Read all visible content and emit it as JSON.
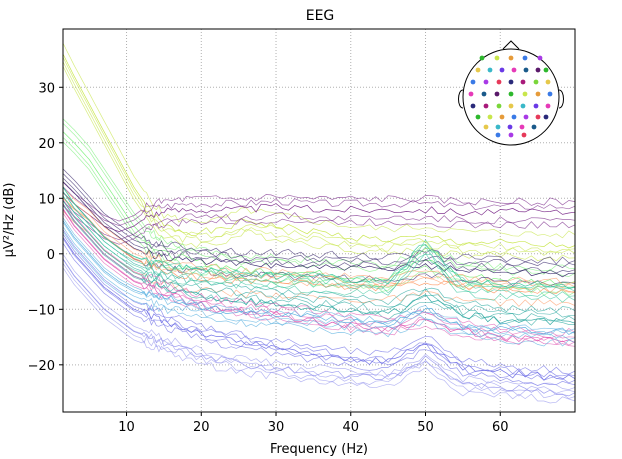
{
  "chart_data": {
    "type": "line",
    "title": "EEG",
    "xlabel": "Frequency (Hz)",
    "ylabel": "µV²/Hz (dB)",
    "xlim": [
      1.5,
      70
    ],
    "ylim": [
      -28.5,
      40.5
    ],
    "xticks": [
      10,
      20,
      30,
      40,
      50,
      60
    ],
    "yticks": [
      -20,
      -10,
      0,
      10,
      20,
      30
    ],
    "grid": true,
    "grid_style": "dotted",
    "line_noise_hz": 50,
    "inset": "sensor-head-map",
    "series_representative": [
      {
        "color": "#c8e64b",
        "values": [
          [
            1.5,
            36
          ],
          [
            3,
            32
          ],
          [
            5,
            27
          ],
          [
            7,
            22
          ],
          [
            9,
            17
          ],
          [
            11,
            12
          ],
          [
            13,
            8
          ],
          [
            15,
            5
          ],
          [
            18,
            4
          ],
          [
            22,
            4
          ],
          [
            26,
            6
          ],
          [
            30,
            5
          ],
          [
            35,
            4
          ],
          [
            40,
            3
          ],
          [
            45,
            2.5
          ],
          [
            50,
            3
          ],
          [
            55,
            2
          ],
          [
            60,
            2
          ],
          [
            65,
            1.5
          ],
          [
            70,
            1.5
          ]
        ]
      },
      {
        "color": "#7cf07c",
        "values": [
          [
            1.5,
            22
          ],
          [
            3,
            20
          ],
          [
            5,
            17
          ],
          [
            7,
            13
          ],
          [
            9,
            9
          ],
          [
            11,
            5
          ],
          [
            13,
            2
          ],
          [
            15,
            0
          ],
          [
            18,
            -1
          ],
          [
            22,
            -2
          ],
          [
            26,
            -3
          ],
          [
            30,
            -3
          ],
          [
            35,
            -3.5
          ],
          [
            40,
            -4
          ],
          [
            45,
            -4.5
          ],
          [
            50,
            -1
          ],
          [
            55,
            -4
          ],
          [
            60,
            -4.5
          ],
          [
            65,
            -5
          ],
          [
            70,
            -5
          ]
        ]
      },
      {
        "color": "#7a2a8a",
        "values": [
          [
            1.5,
            11
          ],
          [
            3,
            9
          ],
          [
            5,
            7
          ],
          [
            7,
            5
          ],
          [
            9,
            4
          ],
          [
            11,
            5
          ],
          [
            13,
            7
          ],
          [
            15,
            7.5
          ],
          [
            18,
            8
          ],
          [
            22,
            8
          ],
          [
            26,
            8
          ],
          [
            30,
            8.5
          ],
          [
            35,
            8
          ],
          [
            40,
            8
          ],
          [
            45,
            8
          ],
          [
            50,
            8
          ],
          [
            55,
            7.5
          ],
          [
            60,
            7.5
          ],
          [
            65,
            7.5
          ],
          [
            70,
            7.5
          ]
        ]
      },
      {
        "color": "#3b2a6e",
        "values": [
          [
            1.5,
            13
          ],
          [
            3,
            11
          ],
          [
            5,
            8
          ],
          [
            7,
            5
          ],
          [
            9,
            3
          ],
          [
            11,
            1
          ],
          [
            13,
            0
          ],
          [
            15,
            -0.5
          ],
          [
            18,
            -1
          ],
          [
            22,
            -1.5
          ],
          [
            26,
            -2
          ],
          [
            30,
            -2
          ],
          [
            35,
            -2.5
          ],
          [
            40,
            -2.5
          ],
          [
            45,
            -3
          ],
          [
            50,
            -2
          ],
          [
            55,
            -3
          ],
          [
            60,
            -3
          ],
          [
            65,
            -3.5
          ],
          [
            70,
            -3.5
          ]
        ]
      },
      {
        "color": "#ff9e6b",
        "values": [
          [
            1.5,
            10
          ],
          [
            3,
            8
          ],
          [
            5,
            6
          ],
          [
            7,
            3
          ],
          [
            9,
            1
          ],
          [
            11,
            -1
          ],
          [
            13,
            -2
          ],
          [
            15,
            -3
          ],
          [
            18,
            -4
          ],
          [
            22,
            -4.5
          ],
          [
            26,
            -5
          ],
          [
            30,
            -5
          ],
          [
            35,
            -5.5
          ],
          [
            40,
            -6
          ],
          [
            45,
            -6
          ],
          [
            50,
            -5
          ],
          [
            55,
            -6
          ],
          [
            60,
            -6.5
          ],
          [
            65,
            -6.5
          ],
          [
            70,
            -7
          ]
        ]
      },
      {
        "color": "#2aa8a0",
        "values": [
          [
            1.5,
            9
          ],
          [
            3,
            6
          ],
          [
            5,
            3
          ],
          [
            7,
            0
          ],
          [
            9,
            -2
          ],
          [
            11,
            -4
          ],
          [
            13,
            -5
          ],
          [
            15,
            -6
          ],
          [
            18,
            -7
          ],
          [
            22,
            -8
          ],
          [
            26,
            -8.5
          ],
          [
            30,
            -9
          ],
          [
            35,
            -9.5
          ],
          [
            40,
            -10
          ],
          [
            45,
            -11
          ],
          [
            50,
            -8
          ],
          [
            55,
            -11
          ],
          [
            60,
            -12
          ],
          [
            65,
            -12
          ],
          [
            70,
            -12.5
          ]
        ]
      },
      {
        "color": "#e05ab4",
        "values": [
          [
            1.5,
            8
          ],
          [
            3,
            5
          ],
          [
            5,
            2
          ],
          [
            7,
            -1
          ],
          [
            9,
            -3
          ],
          [
            11,
            -5
          ],
          [
            13,
            -6
          ],
          [
            15,
            -7
          ],
          [
            18,
            -8.5
          ],
          [
            22,
            -10
          ],
          [
            26,
            -10.5
          ],
          [
            30,
            -11
          ],
          [
            35,
            -12
          ],
          [
            40,
            -13
          ],
          [
            45,
            -13.5
          ],
          [
            50,
            -12
          ],
          [
            55,
            -14
          ],
          [
            60,
            -15
          ],
          [
            65,
            -15.5
          ],
          [
            70,
            -16
          ]
        ]
      },
      {
        "color": "#6e6ee6",
        "values": [
          [
            1.5,
            3
          ],
          [
            3,
            0
          ],
          [
            5,
            -3
          ],
          [
            7,
            -6
          ],
          [
            9,
            -8
          ],
          [
            11,
            -10
          ],
          [
            13,
            -11
          ],
          [
            15,
            -12
          ],
          [
            18,
            -13.5
          ],
          [
            22,
            -15
          ],
          [
            26,
            -16
          ],
          [
            30,
            -17
          ],
          [
            35,
            -18
          ],
          [
            40,
            -19
          ],
          [
            45,
            -19.5
          ],
          [
            50,
            -16
          ],
          [
            55,
            -20.5
          ],
          [
            60,
            -21.5
          ],
          [
            65,
            -22
          ],
          [
            70,
            -22.5
          ]
        ]
      },
      {
        "color": "#9a9aee",
        "values": [
          [
            1.5,
            -1
          ],
          [
            3,
            -4
          ],
          [
            5,
            -7
          ],
          [
            7,
            -10
          ],
          [
            9,
            -12
          ],
          [
            11,
            -14
          ],
          [
            13,
            -15
          ],
          [
            15,
            -16
          ],
          [
            18,
            -17.5
          ],
          [
            22,
            -19
          ],
          [
            26,
            -20
          ],
          [
            30,
            -20.5
          ],
          [
            35,
            -21.5
          ],
          [
            40,
            -22
          ],
          [
            45,
            -22.5
          ],
          [
            50,
            -19
          ],
          [
            55,
            -23.5
          ],
          [
            60,
            -24
          ],
          [
            65,
            -24.5
          ],
          [
            70,
            -25
          ]
        ]
      },
      {
        "color": "#5ab0e0",
        "values": [
          [
            1.5,
            6
          ],
          [
            3,
            3
          ],
          [
            5,
            0
          ],
          [
            7,
            -3
          ],
          [
            9,
            -5
          ],
          [
            11,
            -6.5
          ],
          [
            13,
            -7.5
          ],
          [
            15,
            -8
          ],
          [
            18,
            -9
          ],
          [
            22,
            -10
          ],
          [
            26,
            -10.5
          ],
          [
            30,
            -11
          ],
          [
            35,
            -11.5
          ],
          [
            40,
            -12
          ],
          [
            45,
            -12.5
          ],
          [
            50,
            -10
          ],
          [
            55,
            -13
          ],
          [
            60,
            -13.5
          ],
          [
            65,
            -14
          ],
          [
            70,
            -14
          ]
        ]
      },
      {
        "color": "#3cc8a0",
        "values": [
          [
            1.5,
            12
          ],
          [
            3,
            9
          ],
          [
            5,
            6
          ],
          [
            7,
            3
          ],
          [
            9,
            1
          ],
          [
            11,
            -0.5
          ],
          [
            13,
            -1.5
          ],
          [
            15,
            -2
          ],
          [
            18,
            -2.5
          ],
          [
            22,
            -3
          ],
          [
            26,
            -3.5
          ],
          [
            30,
            -4
          ],
          [
            35,
            -4
          ],
          [
            40,
            -4.5
          ],
          [
            45,
            -5
          ],
          [
            50,
            2
          ],
          [
            55,
            -5
          ],
          [
            60,
            -5.5
          ],
          [
            65,
            -5.5
          ],
          [
            70,
            -6
          ]
        ]
      }
    ]
  },
  "sensor_map": {
    "colors": [
      "#2db82d",
      "#7ad63a",
      "#c8e64b",
      "#e6c84b",
      "#e69b3a",
      "#3ab8c8",
      "#3a7ae6",
      "#6a3ae6",
      "#a83ae6",
      "#e63ab8",
      "#e63a5a",
      "#1a5a8a",
      "#2a2a7a",
      "#5a1a6a",
      "#a81a7a"
    ]
  }
}
